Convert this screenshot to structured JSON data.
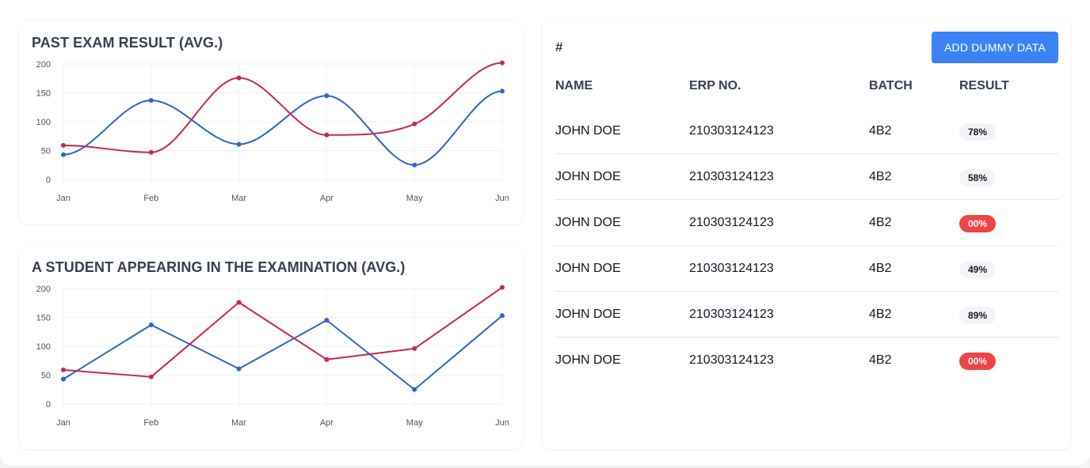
{
  "charts": {
    "past": {
      "title": "PAST EXAM RESULT (AVG.)",
      "chart_data": {
        "type": "line",
        "curve": "smooth",
        "categories": [
          "Jan",
          "Feb",
          "Mar",
          "Apr",
          "May",
          "Jun"
        ],
        "series": [
          {
            "color": "#2f64c8",
            "values": [
              43,
              137,
              61,
              145,
              25,
              153
            ]
          },
          {
            "color": "#c9284f",
            "values": [
              59,
              47,
              176,
              77,
              96,
              202
            ]
          }
        ],
        "ylim": [
          0,
          200
        ],
        "yticks": [
          0,
          50,
          100,
          150,
          200
        ],
        "grid": true,
        "legend": "none"
      }
    },
    "appear": {
      "title": "A STUDENT APPEARING IN THE EXAMINATION (AVG.)",
      "chart_data": {
        "type": "line",
        "curve": "straight",
        "categories": [
          "Jan",
          "Feb",
          "Mar",
          "Apr",
          "May",
          "Jun"
        ],
        "series": [
          {
            "color": "#2f64c8",
            "values": [
              43,
              137,
              61,
              145,
              25,
              153
            ]
          },
          {
            "color": "#c9284f",
            "values": [
              59,
              47,
              176,
              77,
              96,
              202
            ]
          }
        ],
        "ylim": [
          0,
          200
        ],
        "yticks": [
          0,
          50,
          100,
          150,
          200
        ],
        "grid": true,
        "legend": "none"
      }
    }
  },
  "table": {
    "hash": "#",
    "add_button": "ADD DUMMY DATA",
    "headers": [
      "NAME",
      "ERP NO.",
      "BATCH",
      "RESULT"
    ],
    "rows": [
      {
        "name": "JOHN DOE",
        "erp": "210303124123",
        "batch": "4B2",
        "result": "78%",
        "status": "normal"
      },
      {
        "name": "JOHN DOE",
        "erp": "210303124123",
        "batch": "4B2",
        "result": "58%",
        "status": "normal"
      },
      {
        "name": "JOHN DOE",
        "erp": "210303124123",
        "batch": "4B2",
        "result": "00%",
        "status": "fail"
      },
      {
        "name": "JOHN DOE",
        "erp": "210303124123",
        "batch": "4B2",
        "result": "49%",
        "status": "normal"
      },
      {
        "name": "JOHN DOE",
        "erp": "210303124123",
        "batch": "4B2",
        "result": "89%",
        "status": "normal"
      },
      {
        "name": "JOHN DOE",
        "erp": "210303124123",
        "batch": "4B2",
        "result": "00%",
        "status": "fail"
      }
    ],
    "colors": {
      "accent": "#3b82f6",
      "fail_badge": "#ef4444",
      "normal_badge": "#f3f4f6"
    }
  }
}
